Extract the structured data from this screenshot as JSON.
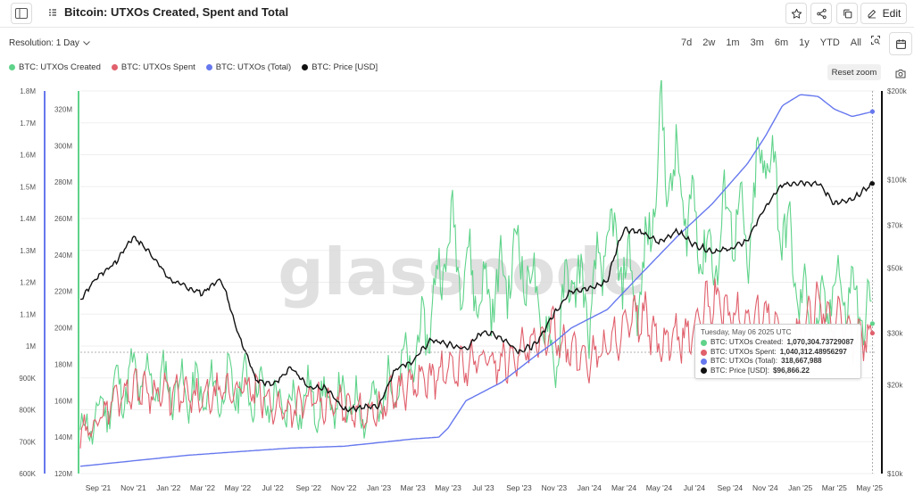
{
  "header": {
    "title": "Bitcoin: UTXOs Created, Spent and Total",
    "edit_label": "Edit"
  },
  "toolbar": {
    "resolution_label": "Resolution: 1 Day",
    "ranges": [
      "7d",
      "2w",
      "1m",
      "3m",
      "6m",
      "1y",
      "YTD",
      "All"
    ],
    "reset_zoom": "Reset zoom"
  },
  "colors": {
    "created": "#5fd38a",
    "spent": "#e0606c",
    "total": "#6678ee",
    "price": "#111111"
  },
  "tooltip": {
    "date": "Tuesday, May 06 2025 UTC",
    "rows": [
      {
        "label": "BTC: UTXOs Created:",
        "value": "1,070,304.73729087"
      },
      {
        "label": "BTC: UTXOs Spent:",
        "value": "1,040,312.48956297"
      },
      {
        "label": "BTC: UTXOs (Total):",
        "value": "318,667,988"
      },
      {
        "label": "BTC: Price [USD]:",
        "value": "$96,866.22"
      }
    ]
  },
  "watermark": "glassnode",
  "chart_data": {
    "type": "line",
    "x_ticks": [
      "Sep '21",
      "Nov '21",
      "Jan '22",
      "Mar '22",
      "May '22",
      "Jul '22",
      "Sep '22",
      "Nov '22",
      "Jan '23",
      "Mar '23",
      "May '23",
      "Jul '23",
      "Sep '23",
      "Nov '23",
      "Jan '24",
      "Mar '24",
      "May '24",
      "Jul '24",
      "Sep '24",
      "Nov '24",
      "Jan '25",
      "Mar '25",
      "May '25"
    ],
    "axes": {
      "left_outer": {
        "ticks": [
          "600K",
          "700K",
          "800K",
          "900K",
          "1M",
          "1.1M",
          "1.2M",
          "1.3M",
          "1.4M",
          "1.5M",
          "1.6M",
          "1.7M",
          "1.8M"
        ],
        "range": [
          600000,
          1800000
        ]
      },
      "left_inner": {
        "ticks": [
          "120M",
          "140M",
          "160M",
          "180M",
          "200M",
          "220M",
          "240M",
          "260M",
          "280M",
          "300M",
          "320M"
        ],
        "range": [
          120000000,
          330000000
        ]
      },
      "right": {
        "ticks": [
          "$10k",
          "$20k",
          "$30k",
          "$50k",
          "$70k",
          "$100k",
          "$200k"
        ],
        "scale": "log",
        "range": [
          10000,
          200000
        ]
      }
    },
    "grid": true,
    "legend_position": "top-left",
    "series": [
      {
        "name": "BTC: UTXOs Created",
        "axis": "left_outer",
        "dates": [
          "2021-08-01",
          "2021-09-01",
          "2021-10-01",
          "2021-11-01",
          "2021-12-01",
          "2022-01-01",
          "2022-02-01",
          "2022-03-01",
          "2022-04-01",
          "2022-05-01",
          "2022-06-01",
          "2022-07-01",
          "2022-08-01",
          "2022-09-01",
          "2022-10-01",
          "2022-11-01",
          "2022-12-01",
          "2023-01-01",
          "2023-02-01",
          "2023-03-01",
          "2023-04-01",
          "2023-05-01",
          "2023-06-01",
          "2023-07-01",
          "2023-08-01",
          "2023-09-01",
          "2023-10-01",
          "2023-11-01",
          "2023-12-01",
          "2024-01-01",
          "2024-02-01",
          "2024-03-01",
          "2024-04-01",
          "2024-05-01",
          "2024-06-01",
          "2024-07-01",
          "2024-08-01",
          "2024-09-01",
          "2024-10-01",
          "2024-11-01",
          "2024-12-01",
          "2025-01-01",
          "2025-02-01",
          "2025-03-01",
          "2025-04-01",
          "2025-05-06"
        ],
        "values": [
          720000,
          780000,
          860000,
          900000,
          890000,
          880000,
          860000,
          850000,
          860000,
          880000,
          860000,
          820000,
          810000,
          840000,
          820000,
          830000,
          800000,
          820000,
          900000,
          960000,
          1100000,
          1350000,
          1250000,
          1150000,
          1200000,
          1300000,
          1150000,
          950000,
          1250000,
          1100000,
          1350000,
          1250000,
          1150000,
          1650000,
          1500000,
          1400000,
          1250000,
          1450000,
          1300000,
          1650000,
          1400000,
          1150000,
          1050000,
          1200000,
          1150000,
          1070305
        ]
      },
      {
        "name": "BTC: UTXOs Spent",
        "axis": "left_outer",
        "dates": [
          "2021-08-01",
          "2021-09-01",
          "2021-10-01",
          "2021-11-01",
          "2021-12-01",
          "2022-01-01",
          "2022-02-01",
          "2022-03-01",
          "2022-04-01",
          "2022-05-01",
          "2022-06-01",
          "2022-07-01",
          "2022-08-01",
          "2022-09-01",
          "2022-10-01",
          "2022-11-01",
          "2022-12-01",
          "2023-01-01",
          "2023-02-01",
          "2023-03-01",
          "2023-04-01",
          "2023-05-01",
          "2023-06-01",
          "2023-07-01",
          "2023-08-01",
          "2023-09-01",
          "2023-10-01",
          "2023-11-01",
          "2023-12-01",
          "2024-01-01",
          "2024-02-01",
          "2024-03-01",
          "2024-04-01",
          "2024-05-01",
          "2024-06-01",
          "2024-07-01",
          "2024-08-01",
          "2024-09-01",
          "2024-10-01",
          "2024-11-01",
          "2024-12-01",
          "2025-01-01",
          "2025-02-01",
          "2025-03-01",
          "2025-04-01",
          "2025-05-06"
        ],
        "values": [
          710000,
          770000,
          840000,
          870000,
          860000,
          850000,
          840000,
          830000,
          850000,
          870000,
          860000,
          810000,
          800000,
          830000,
          810000,
          820000,
          790000,
          800000,
          860000,
          880000,
          900000,
          920000,
          940000,
          960000,
          950000,
          980000,
          1000000,
          1050000,
          980000,
          960000,
          1000000,
          1050000,
          1100000,
          1000000,
          1020000,
          1050000,
          1150000,
          1100000,
          1080000,
          1100000,
          1050000,
          1020000,
          1150000,
          1080000,
          1020000,
          1040312
        ]
      },
      {
        "name": "BTC: UTXOs (Total)",
        "axis": "left_inner",
        "dates": [
          "2021-08-01",
          "2021-11-01",
          "2022-02-01",
          "2022-05-01",
          "2022-08-01",
          "2022-11-01",
          "2023-01-01",
          "2023-03-01",
          "2023-04-15",
          "2023-05-01",
          "2023-06-01",
          "2023-08-01",
          "2023-10-01",
          "2023-11-01",
          "2023-12-01",
          "2024-02-01",
          "2024-04-01",
          "2024-06-01",
          "2024-08-01",
          "2024-10-01",
          "2024-11-01",
          "2024-12-01",
          "2025-01-01",
          "2025-02-01",
          "2025-03-01",
          "2025-04-01",
          "2025-05-06"
        ],
        "values": [
          124000000,
          127000000,
          130000000,
          132000000,
          134000000,
          135000000,
          137000000,
          139000000,
          140000000,
          145000000,
          160000000,
          170000000,
          185000000,
          192000000,
          200000000,
          210000000,
          230000000,
          250000000,
          268000000,
          290000000,
          305000000,
          322000000,
          328000000,
          327000000,
          320000000,
          316000000,
          318667988
        ]
      },
      {
        "name": "BTC: Price [USD]",
        "axis": "right",
        "dates": [
          "2021-08-01",
          "2021-09-01",
          "2021-10-01",
          "2021-11-01",
          "2021-12-01",
          "2022-01-01",
          "2022-02-01",
          "2022-03-01",
          "2022-04-01",
          "2022-05-01",
          "2022-06-01",
          "2022-07-01",
          "2022-08-01",
          "2022-09-01",
          "2022-10-01",
          "2022-11-01",
          "2022-12-01",
          "2023-01-01",
          "2023-02-01",
          "2023-03-01",
          "2023-04-01",
          "2023-05-01",
          "2023-06-01",
          "2023-07-01",
          "2023-08-01",
          "2023-09-01",
          "2023-10-01",
          "2023-11-01",
          "2023-12-01",
          "2024-01-01",
          "2024-02-01",
          "2024-03-01",
          "2024-04-01",
          "2024-05-01",
          "2024-06-01",
          "2024-07-01",
          "2024-08-01",
          "2024-09-01",
          "2024-10-01",
          "2024-11-01",
          "2024-12-01",
          "2025-01-01",
          "2025-02-01",
          "2025-03-01",
          "2025-04-01",
          "2025-05-06"
        ],
        "values": [
          39000,
          47000,
          52000,
          64000,
          56000,
          46000,
          43000,
          41000,
          46000,
          30000,
          21000,
          20000,
          23000,
          19500,
          19500,
          16500,
          16800,
          17000,
          23000,
          24000,
          28500,
          27500,
          26500,
          30500,
          29000,
          26000,
          27500,
          35000,
          42000,
          42500,
          45000,
          68000,
          66000,
          61000,
          67000,
          60000,
          57000,
          58000,
          62000,
          80000,
          96000,
          98000,
          97000,
          83000,
          85000,
          96866
        ]
      }
    ]
  }
}
